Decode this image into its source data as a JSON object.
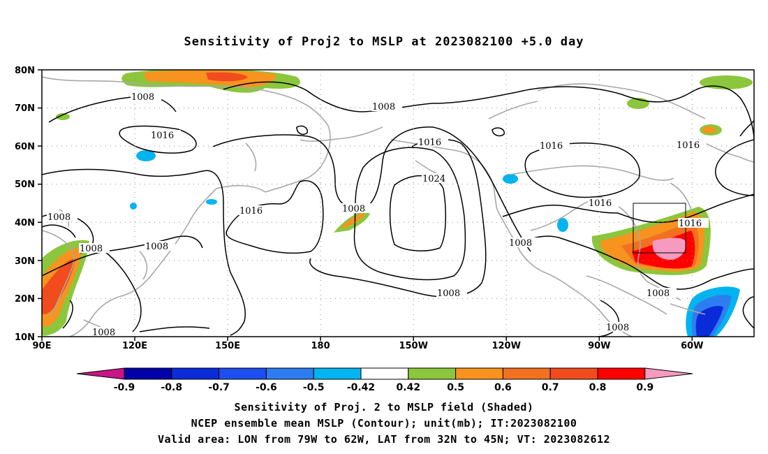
{
  "title": "Sensitivity of Proj2 to MSLP at 2023082100 +5.0 day",
  "footer": {
    "line1": "Sensitivity of Proj. 2 to MSLP field (Shaded)",
    "line2": "NCEP ensemble mean MSLP (Contour); unit(mb); IT:2023082100",
    "line3": "Valid area: LON from 79W to 62W, LAT from 32N to 45N; VT: 2023082612"
  },
  "axes": {
    "y_labels": [
      "80N",
      "70N",
      "60N",
      "50N",
      "40N",
      "30N",
      "20N",
      "10N"
    ],
    "x_labels": [
      "90E",
      "120E",
      "150E",
      "180",
      "150W",
      "120W",
      "90W",
      "60W"
    ]
  },
  "contour_labels": [
    {
      "text": "1008"
    },
    {
      "text": "1016"
    },
    {
      "text": "1008"
    },
    {
      "text": "1016"
    },
    {
      "text": "1016"
    },
    {
      "text": "1008"
    },
    {
      "text": "1008"
    },
    {
      "text": "1008"
    },
    {
      "text": "1016"
    },
    {
      "text": "1024"
    },
    {
      "text": "1008"
    },
    {
      "text": "1016"
    },
    {
      "text": "1016"
    },
    {
      "text": "1008"
    },
    {
      "text": "1016"
    },
    {
      "text": "1008"
    },
    {
      "text": "1008"
    },
    {
      "text": "1008"
    },
    {
      "text": "1008"
    }
  ],
  "colorbar": {
    "labels": [
      "-0.9",
      "-0.8",
      "-0.7",
      "-0.6",
      "-0.5",
      "-0.42",
      "0.42",
      "0.5",
      "0.6",
      "0.7",
      "0.8",
      "0.9"
    ],
    "colors": [
      "#0000a8",
      "#0a2bd8",
      "#1e4ef0",
      "#2e7df0",
      "#00b4f0",
      "#ffffff",
      "#8cc63c",
      "#f7931e",
      "#f27020",
      "#f24b1e",
      "#ff0000"
    ],
    "end_low": "#c71585",
    "end_high": "#f79ac0"
  },
  "valid_area": {
    "lon": [
      "79W",
      "62W"
    ],
    "lat": [
      "32N",
      "45N"
    ]
  }
}
